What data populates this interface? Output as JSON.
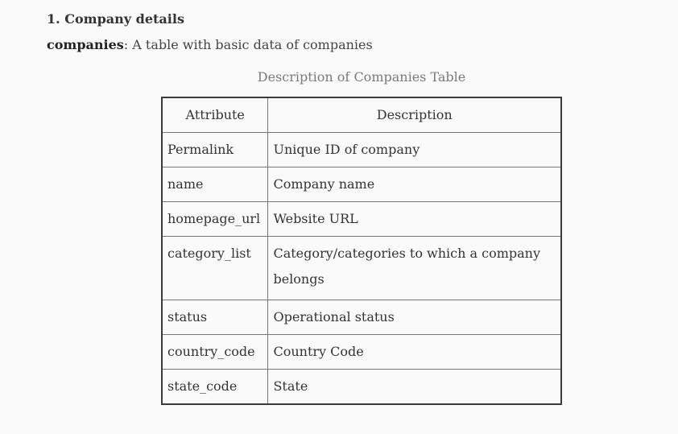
{
  "section": {
    "heading": "1. Company details",
    "intro_term": "companies",
    "intro_rest": ": A table with basic data of companies",
    "caption": "Description of Companies Table"
  },
  "table": {
    "headers": [
      "Attribute",
      "Description"
    ],
    "rows": [
      {
        "attribute": "Permalink",
        "description": "Unique ID of company"
      },
      {
        "attribute": "name",
        "description": "Company name"
      },
      {
        "attribute": "homepage_url",
        "description": "Website URL"
      },
      {
        "attribute": "category_list",
        "description": "Category/categories to which a company belongs"
      },
      {
        "attribute": "status",
        "description": "Operational status"
      },
      {
        "attribute": "country_code",
        "description": "Country Code"
      },
      {
        "attribute": "state_code",
        "description": "State"
      }
    ]
  }
}
